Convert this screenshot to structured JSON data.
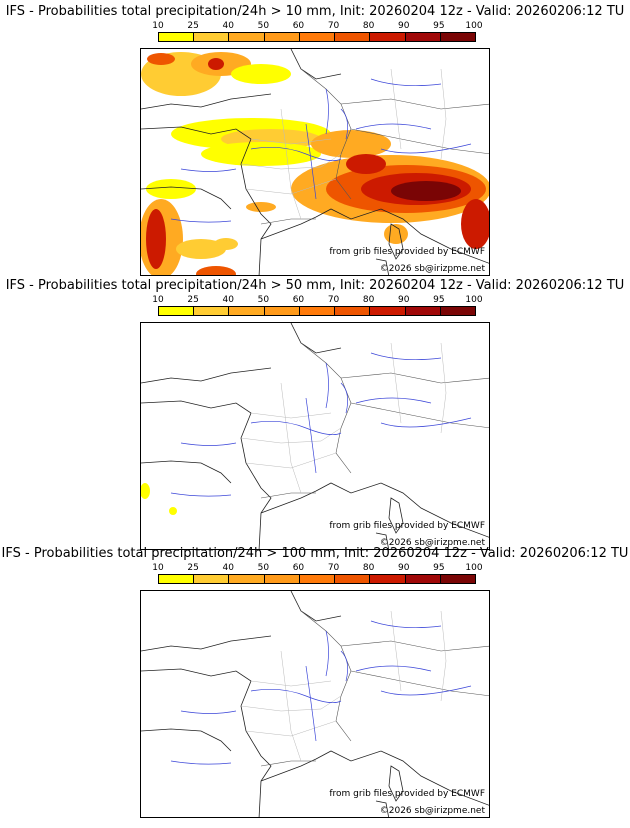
{
  "legend": {
    "ticks": [
      "10",
      "25",
      "40",
      "50",
      "60",
      "70",
      "80",
      "90",
      "95",
      "100"
    ],
    "colors": [
      "#ffff00",
      "#ffcc33",
      "#ffaa22",
      "#ff9a1a",
      "#ff7a0a",
      "#ee5500",
      "#cc1a00",
      "#a00808",
      "#7a0505",
      "#550000"
    ]
  },
  "panels": [
    {
      "title": "IFS - Probabilities total precipitation/24h > 10 mm, Init: 20260204 12z - Valid: 20260206:12 TU",
      "credit_data": "from grib files provided by ECMWF",
      "credit_copyright": "©2026 sb@irizpme.net"
    },
    {
      "title": "IFS - Probabilities total precipitation/24h > 50 mm, Init: 20260204 12z - Valid: 20260206:12 TU",
      "credit_data": "from grib files provided by ECMWF",
      "credit_copyright": "©2026 sb@irizpme.net"
    },
    {
      "title": "IFS - Probabilities total precipitation/24h > 100 mm, Init: 20260204 12z - Valid: 20260206:12 TU",
      "credit_data": "from grib files provided by ECMWF",
      "credit_copyright": "©2026 sb@irizpme.net"
    }
  ]
}
